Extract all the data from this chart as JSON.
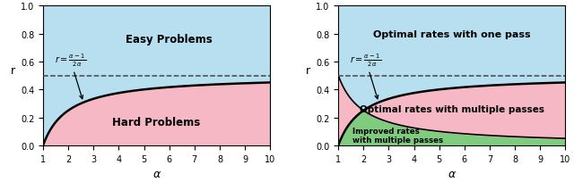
{
  "alpha_min": 1,
  "alpha_max": 10,
  "r_min": 0.0,
  "r_max": 1.0,
  "dashed_r": 0.5,
  "color_blue": "#b8dff0",
  "color_pink": "#f5b8c4",
  "color_green": "#7fcc7f",
  "color_curve": "#000000",
  "color_dashed": "#444444",
  "label_easy": "Easy Problems",
  "label_hard": "Hard Problems",
  "label_one_pass": "Optimal rates with one pass",
  "label_multi_opt": "Optimal rates with multiple passes",
  "label_multi_imp": "Improved rates\nwith multiple passes",
  "label_formula_left": "$r = \\frac{\\alpha - 1}{2\\alpha}$",
  "label_formula_right": "$r = \\frac{\\alpha - 1}{2\\alpha}$",
  "xlabel": "$\\alpha$",
  "ylabel": "r",
  "figsize": [
    6.4,
    2.05
  ],
  "dpi": 100
}
